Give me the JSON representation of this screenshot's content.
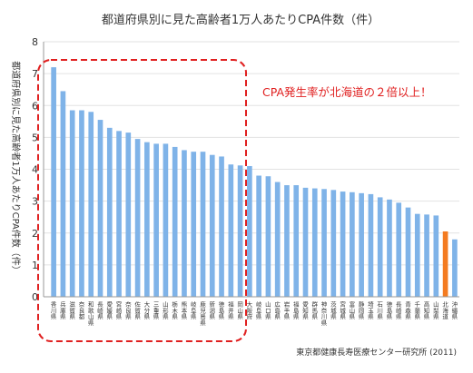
{
  "chart_data": {
    "type": "bar",
    "title": "都道府県別に見た高齢者1万人あたりCPA件数（件）",
    "ylabel": "都道府県別に見た高齢者1万人あたりCPA件数（件）",
    "xlabel": "",
    "ylim": [
      0,
      8
    ],
    "yticks": [
      0,
      1,
      2,
      3,
      4,
      5,
      6,
      7,
      8
    ],
    "grid": true,
    "categories": [
      "香川県",
      "兵庫県",
      "滋賀県",
      "奈良都",
      "和歌山県",
      "長崎県",
      "愛媛県",
      "宮崎県",
      "奈良県",
      "佐賀県",
      "大分県",
      "三重県",
      "山形県",
      "栃木県",
      "熊本県",
      "岐阜県",
      "鹿児島県",
      "新潟県",
      "徳島県",
      "福井県",
      "岡山県",
      "大阪府",
      "岐阜県",
      "山口県",
      "広島県",
      "岩手県",
      "福島県",
      "愛知県",
      "群馬県",
      "神奈川県",
      "茨城県",
      "宮城県",
      "富山県",
      "静岡県",
      "埼玉県",
      "石川県",
      "徳島県",
      "長崎県",
      "青森県",
      "千葉県",
      "高知県",
      "山梨県",
      "北海道",
      "沖縄県"
    ],
    "values": [
      7.2,
      6.45,
      5.85,
      5.85,
      5.8,
      5.55,
      5.3,
      5.2,
      5.15,
      4.95,
      4.85,
      4.8,
      4.8,
      4.7,
      4.6,
      4.55,
      4.55,
      4.45,
      4.4,
      4.15,
      4.12,
      4.1,
      3.8,
      3.78,
      3.6,
      3.5,
      3.5,
      3.42,
      3.4,
      3.38,
      3.35,
      3.3,
      3.28,
      3.25,
      3.22,
      3.12,
      3.05,
      2.95,
      2.8,
      2.6,
      2.58,
      2.55,
      2.05,
      1.8
    ],
    "highlight_index": 42,
    "colors": {
      "bar": "#7fb3e8",
      "highlight": "#f47b20",
      "annotation": "#e02020"
    },
    "annotation": "CPA発生率が北海道の２倍以上！",
    "source": "東京都健康長寿医療センター研究所 (2011)"
  }
}
